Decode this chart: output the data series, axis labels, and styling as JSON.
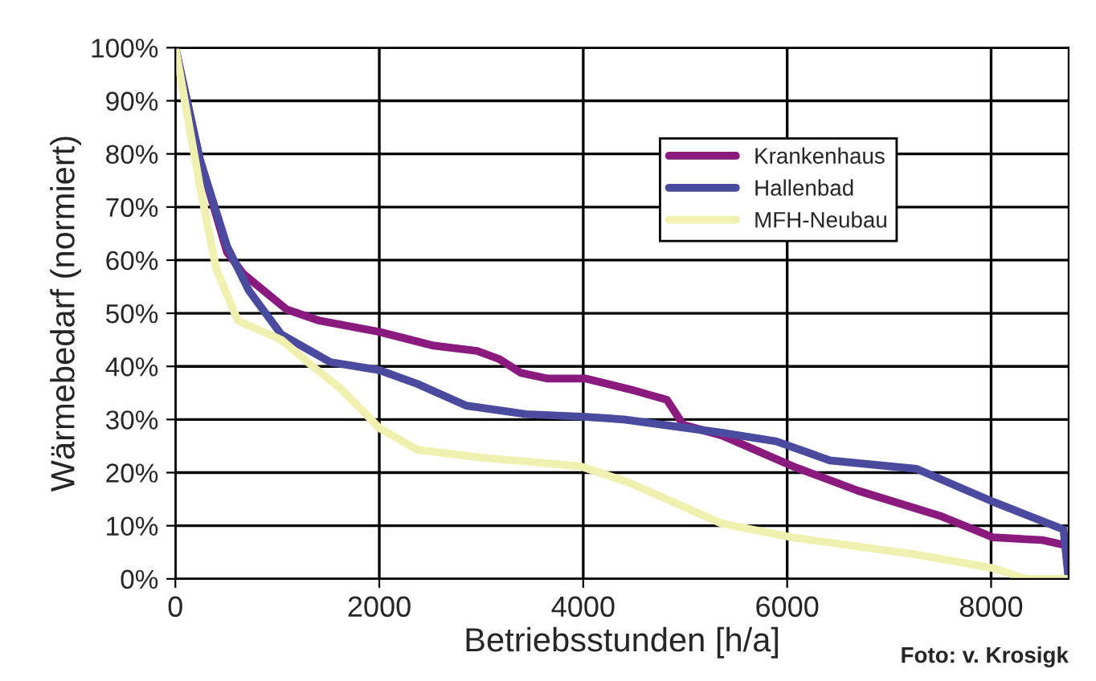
{
  "chart_data": {
    "type": "line",
    "xlabel": "Betriebsstunden [h/a]",
    "ylabel": "Wärmebedarf (normiert)",
    "annotations": [
      "Foto: v. Krosigk"
    ],
    "xlim": [
      0,
      8760
    ],
    "xticks": [
      0,
      2000,
      4000,
      6000,
      8000
    ],
    "ylim": [
      0,
      100
    ],
    "yticks": [
      {
        "value": 0,
        "label": "0%"
      },
      {
        "value": 10,
        "label": "10%"
      },
      {
        "value": 20,
        "label": "20%"
      },
      {
        "value": 30,
        "label": "30%"
      },
      {
        "value": 40,
        "label": "40%"
      },
      {
        "value": 50,
        "label": "50%"
      },
      {
        "value": 60,
        "label": "60%"
      },
      {
        "value": 70,
        "label": "70%"
      },
      {
        "value": 80,
        "label": "80%"
      },
      {
        "value": 90,
        "label": "90%"
      },
      {
        "value": 100,
        "label": "100%"
      }
    ],
    "grid": true,
    "legend": "top right",
    "marker": "none",
    "line_style": "solid",
    "series": [
      {
        "name": "Krankenhaus",
        "color": "#8b1a7f",
        "x": [
          0,
          240,
          507,
          667,
          1093,
          1413,
          2000,
          2533,
          2960,
          3173,
          3387,
          3653,
          4027,
          4453,
          4821,
          4981,
          5360,
          6053,
          6693,
          7493,
          8021,
          8501,
          8760
        ],
        "values": [
          100,
          79,
          61.5,
          57.4,
          50.7,
          48.6,
          46.5,
          43.9,
          42.9,
          41.4,
          38.8,
          37.7,
          37.7,
          35.7,
          33.7,
          29,
          27,
          21.2,
          16.6,
          11.9,
          7.8,
          7.3,
          6.2
        ]
      },
      {
        "name": "Hallenbad",
        "color": "#4a4a9e",
        "x": [
          0,
          240,
          507,
          720,
          1040,
          1520,
          2000,
          2373,
          2853,
          3440,
          4027,
          4400,
          5360,
          5890,
          6420,
          7270,
          8021,
          8710,
          8760
        ],
        "values": [
          100,
          79,
          62.6,
          54.3,
          46,
          40.8,
          39.3,
          36.7,
          32.6,
          31,
          30.5,
          30,
          27.5,
          25.9,
          22.3,
          20.7,
          14.5,
          9.3,
          0
        ]
      },
      {
        "name": "MFH-Neubau",
        "color": "#f0f0b0",
        "x": [
          0,
          240,
          400,
          613,
          1040,
          1360,
          1627,
          2000,
          2373,
          3013,
          3973,
          4453,
          5360,
          6053,
          7227,
          8021,
          8341,
          8760
        ],
        "values": [
          100,
          74,
          58.4,
          48.6,
          45,
          39.8,
          35.7,
          28.4,
          24.3,
          22.8,
          21.2,
          18.1,
          10.4,
          7.8,
          4.7,
          2,
          0,
          0
        ]
      }
    ]
  }
}
